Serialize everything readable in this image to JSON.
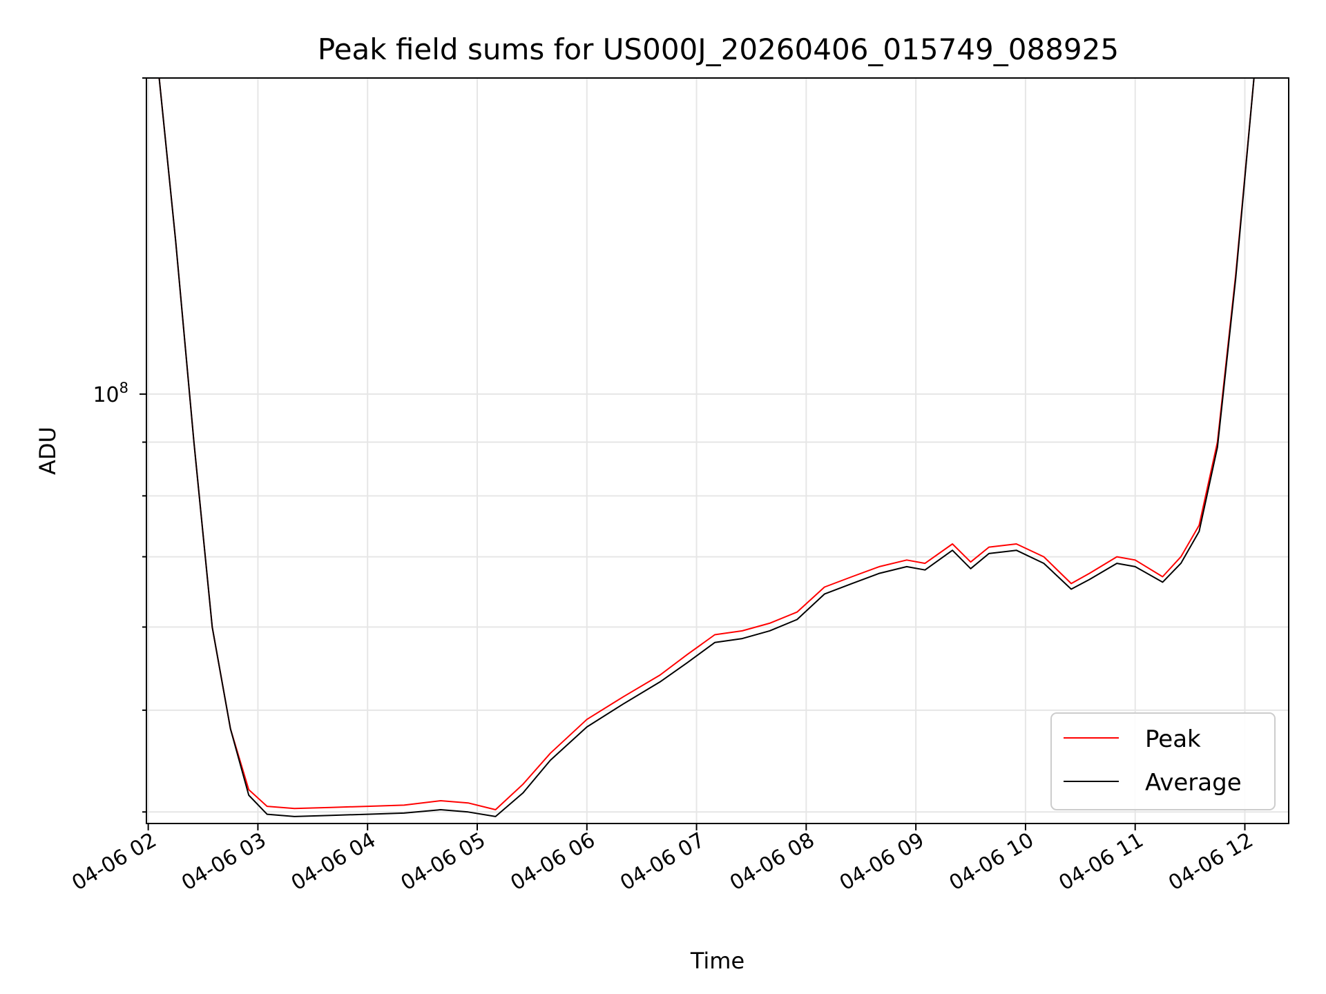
{
  "chart_data": {
    "type": "line",
    "title": "Peak field sums for US000J_20260406_015749_088925",
    "xlabel": "Time",
    "ylabel": "ADU",
    "yscale": "log",
    "grid": true,
    "legend_position": "bottom-right",
    "xlim": [
      "04-06 01:59",
      "04-06 12:24"
    ],
    "ylim": [
      39000000.0,
      200000000.0
    ],
    "x_ticks": [
      "04-06 02",
      "04-06 03",
      "04-06 04",
      "04-06 05",
      "04-06 06",
      "04-06 07",
      "04-06 08",
      "04-06 09",
      "04-06 10",
      "04-06 11",
      "04-06 12"
    ],
    "y_ticks": [
      {
        "value": 100000000,
        "label": "10",
        "exponent": "8"
      }
    ],
    "x": [
      "04-06 02:06",
      "04-06 02:15",
      "04-06 02:25",
      "04-06 02:35",
      "04-06 02:45",
      "04-06 02:55",
      "04-06 03:05",
      "04-06 03:20",
      "04-06 03:40",
      "04-06 04:00",
      "04-06 04:20",
      "04-06 04:40",
      "04-06 04:55",
      "04-06 05:10",
      "04-06 05:25",
      "04-06 05:40",
      "04-06 06:00",
      "04-06 06:20",
      "04-06 06:40",
      "04-06 06:55",
      "04-06 07:10",
      "04-06 07:25",
      "04-06 07:40",
      "04-06 07:55",
      "04-06 08:10",
      "04-06 08:25",
      "04-06 08:40",
      "04-06 08:55",
      "04-06 09:05",
      "04-06 09:20",
      "04-06 09:30",
      "04-06 09:40",
      "04-06 09:55",
      "04-06 10:10",
      "04-06 10:25",
      "04-06 10:35",
      "04-06 10:50",
      "04-06 11:00",
      "04-06 11:15",
      "04-06 11:25",
      "04-06 11:35",
      "04-06 11:45",
      "04-06 11:55",
      "04-06 12:05",
      "04-06 12:12"
    ],
    "series": [
      {
        "name": "Peak",
        "color": "#ff0000",
        "values": [
          200000000,
          140000000,
          90000000,
          60000000,
          48000000,
          42000000,
          40500000,
          40300000,
          40400000,
          40500000,
          40600000,
          41000000,
          40800000,
          40200000,
          42500000,
          45500000,
          49000000,
          51500000,
          54000000,
          56500000,
          59000000,
          59500000,
          60500000,
          62000000,
          65500000,
          67000000,
          68500000,
          69500000,
          69000000,
          72000000,
          69200000,
          71500000,
          72000000,
          70000000,
          66000000,
          67500000,
          70000000,
          69500000,
          67000000,
          70000000,
          75000000,
          90000000,
          130000000,
          200000000,
          200000000
        ]
      },
      {
        "name": "Average",
        "color": "#000000",
        "values": [
          200000000,
          140000000,
          90000000,
          60000000,
          48000000,
          41500000,
          39800000,
          39600000,
          39700000,
          39800000,
          39900000,
          40200000,
          40000000,
          39600000,
          41700000,
          44800000,
          48200000,
          50700000,
          53200000,
          55500000,
          58000000,
          58500000,
          59500000,
          61000000,
          64500000,
          66000000,
          67500000,
          68500000,
          68000000,
          71000000,
          68200000,
          70500000,
          71000000,
          69000000,
          65200000,
          66600000,
          69000000,
          68500000,
          66200000,
          69000000,
          74000000,
          89000000,
          129000000,
          200000000,
          200000000
        ]
      }
    ]
  }
}
